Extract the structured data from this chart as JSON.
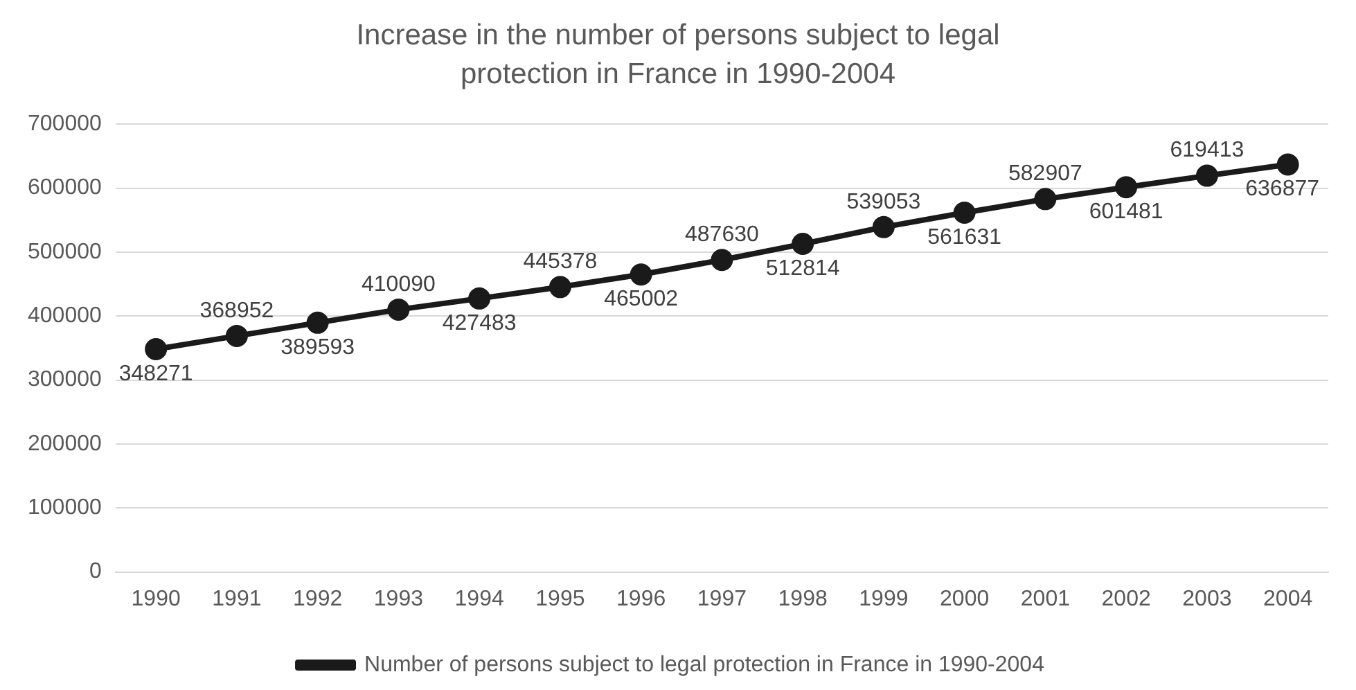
{
  "chart_data": {
    "type": "line",
    "title": "Increase in the number of persons subject to legal protection in France in 1990-2004",
    "categories": [
      "1990",
      "1991",
      "1992",
      "1993",
      "1994",
      "1995",
      "1996",
      "1997",
      "1998",
      "1999",
      "2000",
      "2001",
      "2002",
      "2003",
      "2004"
    ],
    "series": [
      {
        "name": "Number of persons subject to legal protection in France in 1990-2004",
        "color": "#1a1a1a",
        "values": [
          348271,
          368952,
          389593,
          410090,
          427483,
          445378,
          465002,
          487630,
          512814,
          539053,
          561631,
          582907,
          601481,
          619413,
          636877
        ]
      }
    ],
    "ylim": [
      0,
      700000
    ],
    "yticks": [
      0,
      100000,
      200000,
      300000,
      400000,
      500000,
      600000,
      700000
    ],
    "grid": "y",
    "legend": "bottom",
    "marker": "circle",
    "line_style": "solid",
    "data_labels": true
  }
}
